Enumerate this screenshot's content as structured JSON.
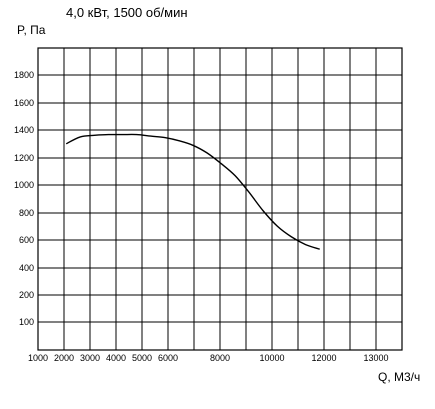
{
  "chart_data": {
    "type": "line",
    "title": "4,0 кВт, 1500 об/мин",
    "xlabel": "Q, М3/ч",
    "ylabel": "P, Па",
    "x_ticks": [
      "1000",
      "2000",
      "3000",
      "4000",
      "5000",
      "6000",
      "8000",
      "10000",
      "12000",
      "13000"
    ],
    "y_ticks": [
      "100",
      "200",
      "400",
      "600",
      "800",
      "1000",
      "1200",
      "1400",
      "1600",
      "1800"
    ],
    "grid": true,
    "series": [
      {
        "x": [
          2000,
          2500,
          3000,
          3500,
          4000,
          4500,
          5000,
          5500,
          6000,
          6500,
          7000,
          7500,
          8000,
          8500,
          9000,
          9500,
          10000,
          10500,
          11000
        ],
        "y": [
          1350,
          1395,
          1405,
          1410,
          1410,
          1410,
          1400,
          1390,
          1370,
          1340,
          1290,
          1220,
          1140,
          1030,
          910,
          810,
          740,
          690,
          660
        ]
      }
    ]
  }
}
